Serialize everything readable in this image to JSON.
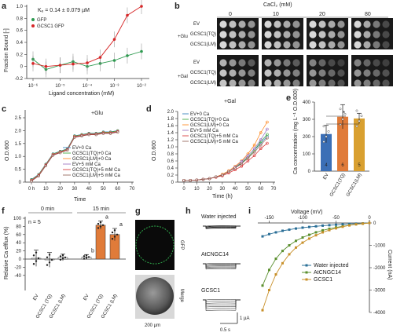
{
  "panels": {
    "a": {
      "label": "a",
      "kd": "Kₑ = 0.14 ± 0.079 µM",
      "legend": [
        "GFP",
        "GCSC1 GFP"
      ],
      "ylabel": "Fraction Bound [-]",
      "xlabel": "Ligand concentration (mM)",
      "yticks": [
        "1.0",
        "0.8",
        "0.6",
        "0.4",
        "0.2",
        "0",
        "-0.2"
      ],
      "xticks": [
        "10⁻⁶",
        "10⁻⁵",
        "10⁻⁴",
        "10⁻³",
        "10⁻²"
      ]
    },
    "b": {
      "label": "b",
      "cacl2": "CaCl₂ (mM)",
      "concentrations": [
        "0",
        "10",
        "20",
        "80"
      ],
      "glu_label": "+Glu",
      "gal_label": "+Gal",
      "rows": [
        "EV",
        "GCSC1(TQ)",
        "GCSC1(LM)"
      ]
    },
    "c": {
      "label": "c",
      "title": "+Glu",
      "ylabel": "O.D.600",
      "xlabel": "Time",
      "yticks": [
        "2.5",
        "2.0",
        "1.5",
        "1.0",
        "0.5",
        "0"
      ],
      "xticks": [
        "0 h",
        "10",
        "20",
        "30",
        "40",
        "50",
        "60",
        "70"
      ],
      "legend": [
        "EV+0 Ca",
        "GCSC1(TQ)+0 Ca",
        "GCSC1(LM)+0 Ca",
        "EV+5 mM Ca",
        "GCSC1(TQ)+5 mM Ca",
        "GCSC1(LM)+5 mM Ca"
      ]
    },
    "d": {
      "label": "d",
      "title": "+Gal",
      "ylabel": "O.D.600",
      "xlabel": "Time (h)",
      "yticks": [
        "2.0",
        "1.8",
        "1.6",
        "1.4",
        "1.2",
        "1.0",
        "0.8",
        "0.6",
        "0.4",
        "0.2",
        "0"
      ],
      "xticks": [
        "0",
        "10",
        "20",
        "30",
        "40",
        "50",
        "60",
        "70"
      ],
      "legend": [
        "EV+0 Ca",
        "GCSC1(TQ)+0 Ca",
        "GCSC1(LM)+0 Ca",
        "EV+5 mM Ca",
        "GCSC1(TQ)+5 mM Ca",
        "GCSC1(LM)+5 mM Ca"
      ]
    },
    "e": {
      "label": "e",
      "ylabel": "Ca concentration (mg L⁻¹ O.D.600)",
      "yticks": [
        "400",
        "300",
        "200",
        "100",
        "0"
      ],
      "categories": [
        "EV",
        "GCSC1(TQ)",
        "GCSC1(LM)"
      ],
      "n_labels": [
        "4",
        "6",
        "5"
      ],
      "sig": "*"
    },
    "f": {
      "label": "f",
      "n": "n = 5",
      "ylabel": "Relative Ca efflux (%)",
      "yticks": [
        "100",
        "80",
        "60",
        "40",
        "20",
        "0",
        "-20",
        "-40"
      ],
      "groups": [
        "0 min",
        "15 min"
      ],
      "categories": [
        "EV",
        "GCSC1 (TQ)",
        "GCSC1 (LM)",
        "EV",
        "GCSC1 (TQ)",
        "GCSC1 (LM)"
      ],
      "letters": [
        "b",
        "a",
        "a"
      ]
    },
    "g": {
      "label": "g",
      "top_label": "GFP",
      "bottom_label": "Merge",
      "scale": "200 µm"
    },
    "h": {
      "label": "h",
      "traces": [
        "Water injected",
        "AtCNGC14",
        "GCSC1"
      ],
      "scale_y": "1 µA",
      "scale_x": "0.5 s"
    },
    "i": {
      "label": "i",
      "xlabel": "Voltage (mV)",
      "ylabel": "Current (nA)",
      "xticks": [
        "-150",
        "-100",
        "-50",
        "0"
      ],
      "yticks": [
        "0",
        "-1000",
        "-2000",
        "-3000",
        "-4000"
      ],
      "legend": [
        "Water injected",
        "AtCNGC14",
        "GCSC1"
      ]
    }
  },
  "chart_data": [
    {
      "type": "scatter",
      "panel": "a",
      "series": [
        {
          "name": "GFP",
          "color": "#2e9a50",
          "x": [
            1e-06,
            3e-06,
            1e-05,
            3e-05,
            0.0001,
            0.0003,
            0.001,
            0.003,
            0.01
          ],
          "y": [
            0.12,
            -0.05,
            0.02,
            0.08,
            0.0,
            0.05,
            0.1,
            0.18,
            0.25
          ]
        },
        {
          "name": "GCSC1 GFP",
          "color": "#d62728",
          "x": [
            1e-06,
            3e-06,
            1e-05,
            3e-05,
            0.0001,
            0.0003,
            0.001,
            0.003,
            0.01
          ],
          "y": [
            0.05,
            0.0,
            0.02,
            0.04,
            0.06,
            0.15,
            0.45,
            0.85,
            1.0
          ]
        }
      ],
      "ylim": [
        -0.2,
        1.0
      ]
    },
    {
      "type": "line",
      "panel": "c",
      "x": [
        0,
        5,
        10,
        15,
        20,
        25,
        30,
        35,
        40,
        45,
        50,
        55,
        60
      ],
      "series": [
        {
          "name": "EV+0 Ca",
          "values": [
            0.1,
            0.3,
            0.7,
            1.1,
            1.2,
            1.3,
            1.8,
            1.85,
            1.9,
            1.9,
            1.95,
            1.95,
            2.0
          ]
        },
        {
          "name": "GCSC1(TQ)+0 Ca",
          "values": [
            0.1,
            0.3,
            0.7,
            1.1,
            1.2,
            1.3,
            1.8,
            1.85,
            1.9,
            1.9,
            1.95,
            1.95,
            2.0
          ]
        },
        {
          "name": "GCSC1(LM)+0 Ca",
          "values": [
            0.1,
            0.3,
            0.7,
            1.1,
            1.2,
            1.3,
            1.8,
            1.85,
            1.9,
            1.9,
            1.95,
            1.95,
            2.0
          ]
        },
        {
          "name": "EV+5 mM Ca",
          "values": [
            0.1,
            0.3,
            0.7,
            1.1,
            1.2,
            1.3,
            1.8,
            1.85,
            1.9,
            1.9,
            1.95,
            1.95,
            2.0
          ]
        },
        {
          "name": "GCSC1(TQ)+5 mM Ca",
          "values": [
            0.1,
            0.3,
            0.7,
            1.1,
            1.2,
            1.3,
            1.8,
            1.85,
            1.9,
            1.9,
            1.95,
            1.95,
            2.0
          ]
        },
        {
          "name": "GCSC1(LM)+5 mM Ca",
          "values": [
            0.1,
            0.3,
            0.7,
            1.1,
            1.2,
            1.3,
            1.8,
            1.85,
            1.9,
            1.9,
            1.95,
            1.95,
            2.0
          ]
        }
      ],
      "ylim": [
        0,
        2.5
      ]
    },
    {
      "type": "line",
      "panel": "d",
      "x": [
        0,
        5,
        10,
        15,
        20,
        25,
        30,
        35,
        40,
        45,
        50,
        55,
        60,
        65
      ],
      "series": [
        {
          "name": "EV+0 Ca",
          "color": "#1f77b4",
          "values": [
            0.05,
            0.05,
            0.06,
            0.08,
            0.1,
            0.15,
            0.2,
            0.3,
            0.4,
            0.55,
            0.7,
            0.9,
            1.1,
            1.3
          ]
        },
        {
          "name": "GCSC1(TQ)+0 Ca",
          "color": "#2ca02c",
          "values": [
            0.05,
            0.05,
            0.06,
            0.08,
            0.1,
            0.15,
            0.2,
            0.3,
            0.4,
            0.55,
            0.7,
            0.9,
            1.15,
            1.35
          ]
        },
        {
          "name": "GCSC1(LM)+0 Ca",
          "color": "#ff7f0e",
          "values": [
            0.05,
            0.05,
            0.06,
            0.08,
            0.1,
            0.15,
            0.22,
            0.32,
            0.45,
            0.6,
            0.8,
            1.05,
            1.4,
            1.7
          ]
        },
        {
          "name": "EV+5 mM Ca",
          "color": "#9467bd",
          "values": [
            0.05,
            0.05,
            0.06,
            0.08,
            0.1,
            0.15,
            0.2,
            0.3,
            0.42,
            0.58,
            0.75,
            0.95,
            1.2,
            1.5
          ]
        },
        {
          "name": "GCSC1(TQ)+5 mM Ca",
          "color": "#d62728",
          "values": [
            0.05,
            0.05,
            0.06,
            0.08,
            0.1,
            0.14,
            0.18,
            0.26,
            0.35,
            0.45,
            0.6,
            0.75,
            0.95,
            1.1
          ]
        },
        {
          "name": "GCSC1(LM)+5 mM Ca",
          "color": "#8c564b",
          "values": [
            0.05,
            0.05,
            0.06,
            0.08,
            0.1,
            0.15,
            0.2,
            0.3,
            0.4,
            0.52,
            0.68,
            0.85,
            1.05,
            1.25
          ]
        }
      ],
      "ylim": [
        0,
        2.0
      ]
    },
    {
      "type": "bar",
      "panel": "e",
      "categories": [
        "EV",
        "GCSC1(TQ)",
        "GCSC1(LM)"
      ],
      "values": [
        215,
        315,
        305
      ],
      "errors": [
        50,
        70,
        30
      ],
      "colors": [
        "#3b6fb6",
        "#e07b39",
        "#d9a030"
      ],
      "ylim": [
        0,
        400
      ]
    },
    {
      "type": "bar",
      "panel": "f",
      "categories": [
        "EV",
        "GCSC1 (TQ)",
        "GCSC1 (LM)",
        "EV",
        "GCSC1 (TQ)",
        "GCSC1 (LM)"
      ],
      "values": [
        2,
        -2,
        4,
        5,
        83,
        60
      ],
      "errors": [
        20,
        18,
        8,
        6,
        10,
        15
      ],
      "colors": [
        "#ffffff",
        "#ffffff",
        "#ffffff",
        "#ffffff",
        "#e07b39",
        "#e07b39"
      ],
      "ylim": [
        -40,
        100
      ]
    },
    {
      "type": "line",
      "panel": "i",
      "x": [
        -160,
        -150,
        -140,
        -130,
        -120,
        -110,
        -100,
        -90,
        -80,
        -70,
        -60,
        -50,
        -40,
        -30,
        -20,
        -10,
        0
      ],
      "series": [
        {
          "name": "Water injected",
          "color": "#2a6f97",
          "values": [
            -600,
            -500,
            -420,
            -350,
            -300,
            -250,
            -210,
            -180,
            -150,
            -120,
            -100,
            -80,
            -60,
            -40,
            -30,
            -20,
            0
          ]
        },
        {
          "name": "AtCNGC14",
          "color": "#5a8f2e",
          "values": [
            -2800,
            -2100,
            -1600,
            -1250,
            -1000,
            -800,
            -650,
            -530,
            -420,
            -330,
            -260,
            -200,
            -150,
            -100,
            -60,
            -30,
            0
          ]
        },
        {
          "name": "GCSC1",
          "color": "#c8902a",
          "values": [
            -3900,
            -3000,
            -2300,
            -1800,
            -1400,
            -1100,
            -880,
            -700,
            -550,
            -420,
            -320,
            -240,
            -170,
            -110,
            -60,
            -30,
            0
          ]
        }
      ],
      "ylim": [
        -4000,
        200
      ]
    }
  ]
}
